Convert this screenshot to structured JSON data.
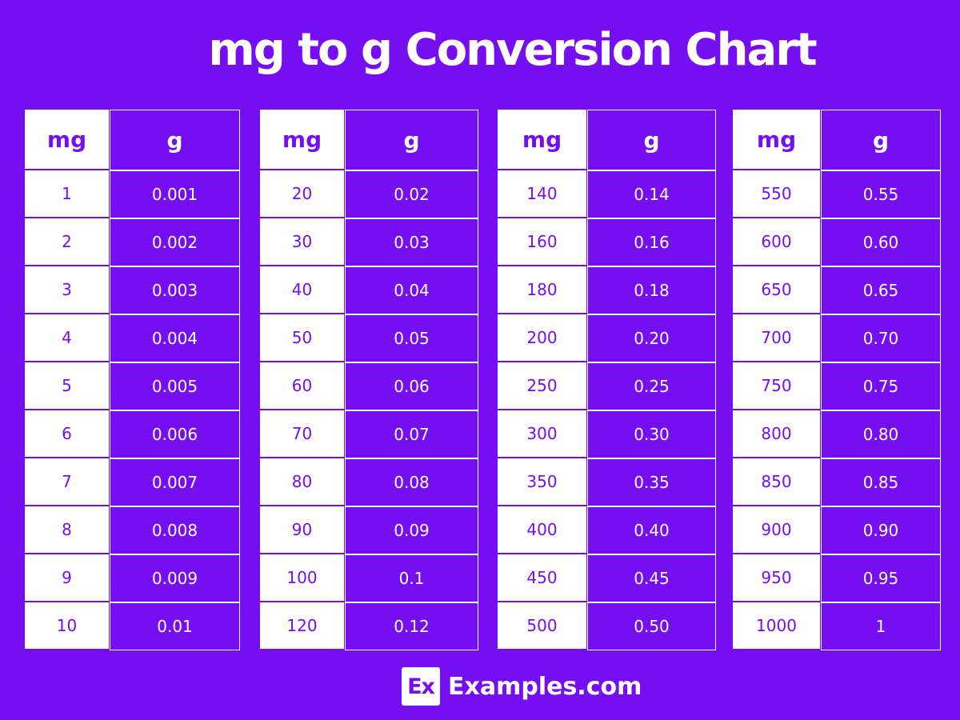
{
  "title": "mg to g Conversion Chart",
  "colors": {
    "background": "#760ef2",
    "mg_cell": "#ffffff",
    "g_cell": "#760ef2"
  },
  "headers": {
    "mg": "mg",
    "g": "g"
  },
  "tables": [
    {
      "rows": [
        [
          "1",
          "0.001"
        ],
        [
          "2",
          "0.002"
        ],
        [
          "3",
          "0.003"
        ],
        [
          "4",
          "0.004"
        ],
        [
          "5",
          "0.005"
        ],
        [
          "6",
          "0.006"
        ],
        [
          "7",
          "0.007"
        ],
        [
          "8",
          "0.008"
        ],
        [
          "9",
          "0.009"
        ],
        [
          "10",
          "0.01"
        ]
      ]
    },
    {
      "rows": [
        [
          "20",
          "0.02"
        ],
        [
          "30",
          "0.03"
        ],
        [
          "40",
          "0.04"
        ],
        [
          "50",
          "0.05"
        ],
        [
          "60",
          "0.06"
        ],
        [
          "70",
          "0.07"
        ],
        [
          "80",
          "0.08"
        ],
        [
          "90",
          "0.09"
        ],
        [
          "100",
          "0.1"
        ],
        [
          "120",
          "0.12"
        ]
      ]
    },
    {
      "rows": [
        [
          "140",
          "0.14"
        ],
        [
          "160",
          "0.16"
        ],
        [
          "180",
          "0.18"
        ],
        [
          "200",
          "0.20"
        ],
        [
          "250",
          "0.25"
        ],
        [
          "300",
          "0.30"
        ],
        [
          "350",
          "0.35"
        ],
        [
          "400",
          "0.40"
        ],
        [
          "450",
          "0.45"
        ],
        [
          "500",
          "0.50"
        ]
      ]
    },
    {
      "rows": [
        [
          "550",
          "0.55"
        ],
        [
          "600",
          "0.60"
        ],
        [
          "650",
          "0.65"
        ],
        [
          "700",
          "0.70"
        ],
        [
          "750",
          "0.75"
        ],
        [
          "800",
          "0.80"
        ],
        [
          "850",
          "0.85"
        ],
        [
          "900",
          "0.90"
        ],
        [
          "950",
          "0.95"
        ],
        [
          "1000",
          "1"
        ]
      ]
    }
  ],
  "footer": {
    "logo": "Ex",
    "brand": "Examples.com"
  }
}
